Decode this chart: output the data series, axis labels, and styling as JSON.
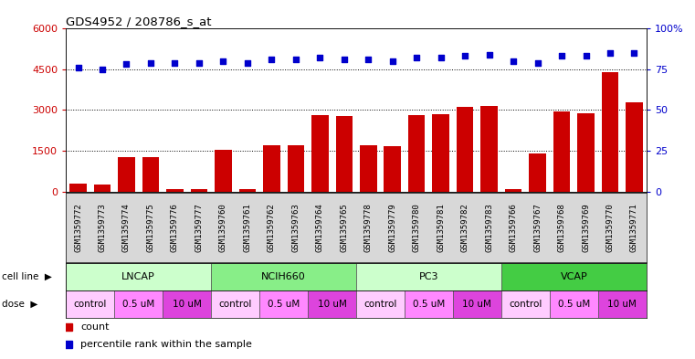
{
  "title": "GDS4952 / 208786_s_at",
  "samples": [
    "GSM1359772",
    "GSM1359773",
    "GSM1359774",
    "GSM1359775",
    "GSM1359776",
    "GSM1359777",
    "GSM1359760",
    "GSM1359761",
    "GSM1359762",
    "GSM1359763",
    "GSM1359764",
    "GSM1359765",
    "GSM1359778",
    "GSM1359779",
    "GSM1359780",
    "GSM1359781",
    "GSM1359782",
    "GSM1359783",
    "GSM1359766",
    "GSM1359767",
    "GSM1359768",
    "GSM1359769",
    "GSM1359770",
    "GSM1359771"
  ],
  "counts": [
    300,
    250,
    1280,
    1280,
    80,
    80,
    1530,
    80,
    1700,
    1700,
    2820,
    2780,
    1700,
    1680,
    2820,
    2860,
    3130,
    3160,
    80,
    1420,
    2950,
    2870,
    4380,
    3280
  ],
  "percentile_ranks": [
    76,
    75,
    78,
    79,
    79,
    79,
    80,
    79,
    81,
    81,
    82,
    81,
    81,
    80,
    82,
    82,
    83,
    84,
    80,
    79,
    83,
    83,
    85,
    85
  ],
  "bar_color": "#cc0000",
  "dot_color": "#0000cc",
  "ylim_left": [
    0,
    6000
  ],
  "yticks_left": [
    0,
    1500,
    3000,
    4500,
    6000
  ],
  "ytick_labels_left": [
    "0",
    "1500",
    "3000",
    "4500",
    "6000"
  ],
  "ylim_right": [
    0,
    100
  ],
  "yticks_right": [
    0,
    25,
    50,
    75,
    100
  ],
  "ytick_labels_right": [
    "0",
    "25",
    "50",
    "75",
    "100%"
  ],
  "cell_lines": [
    {
      "name": "LNCAP",
      "start": 0,
      "end": 6,
      "color": "#ccffcc"
    },
    {
      "name": "NCIH660",
      "start": 6,
      "end": 12,
      "color": "#88ee88"
    },
    {
      "name": "PC3",
      "start": 12,
      "end": 18,
      "color": "#ccffcc"
    },
    {
      "name": "VCAP",
      "start": 18,
      "end": 24,
      "color": "#44cc44"
    }
  ],
  "doses": [
    {
      "name": "control",
      "start": 0,
      "end": 2
    },
    {
      "name": "0.5 uM",
      "start": 2,
      "end": 4
    },
    {
      "name": "10 uM",
      "start": 4,
      "end": 6
    },
    {
      "name": "control",
      "start": 6,
      "end": 8
    },
    {
      "name": "0.5 uM",
      "start": 8,
      "end": 10
    },
    {
      "name": "10 uM",
      "start": 10,
      "end": 12
    },
    {
      "name": "control",
      "start": 12,
      "end": 14
    },
    {
      "name": "0.5 uM",
      "start": 14,
      "end": 16
    },
    {
      "name": "10 uM",
      "start": 16,
      "end": 18
    },
    {
      "name": "control",
      "start": 18,
      "end": 20
    },
    {
      "name": "0.5 uM",
      "start": 20,
      "end": 22
    },
    {
      "name": "10 uM",
      "start": 22,
      "end": 24
    }
  ],
  "dose_colors": {
    "control": "#ffccff",
    "0.5 uM": "#ff88ff",
    "10 uM": "#dd44dd"
  },
  "legend_items": [
    {
      "label": "count",
      "color": "#cc0000"
    },
    {
      "label": "percentile rank within the sample",
      "color": "#0000cc"
    }
  ],
  "grid_dotted_values": [
    1500,
    3000,
    4500
  ],
  "background_color": "#ffffff",
  "plot_bg": "#ffffff",
  "label_bg": "#d8d8d8",
  "cell_line_label": "cell line",
  "dose_label": "dose"
}
